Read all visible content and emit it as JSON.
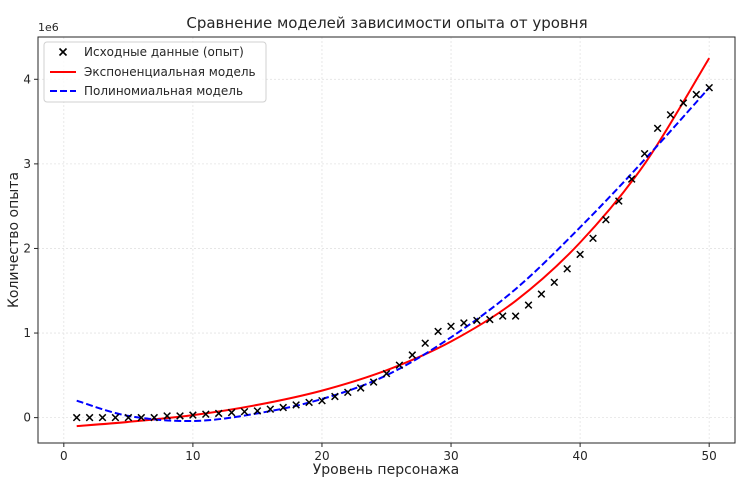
{
  "chart_data": {
    "type": "scatter",
    "title": "Сравнение моделей зависимости опыта от уровня",
    "xlabel": "Уровень персонажа",
    "ylabel": "Количество опыта",
    "y_scale_label": "1e6",
    "xlim": [
      -2,
      52
    ],
    "ylim": [
      -0.3,
      4.5
    ],
    "x_ticks": [
      0,
      10,
      20,
      30,
      40,
      50
    ],
    "x_tick_labels": [
      "0",
      "10",
      "20",
      "30",
      "40",
      "50"
    ],
    "y_ticks": [
      0,
      1,
      2,
      3,
      4
    ],
    "y_tick_labels": [
      "0",
      "1",
      "2",
      "3",
      "4"
    ],
    "grid": true,
    "legend_position": "top-left",
    "series": [
      {
        "name": "Исходные данные (опыт)",
        "kind": "scatter",
        "marker": "x",
        "color": "#000000",
        "x": [
          1,
          2,
          3,
          4,
          5,
          6,
          7,
          8,
          9,
          10,
          11,
          12,
          13,
          14,
          15,
          16,
          17,
          18,
          19,
          20,
          21,
          22,
          23,
          24,
          25,
          26,
          27,
          28,
          29,
          30,
          31,
          32,
          33,
          34,
          35,
          36,
          37,
          38,
          39,
          40,
          41,
          42,
          43,
          44,
          45,
          46,
          47,
          48,
          49,
          50
        ],
        "y": [
          0.0,
          0.0,
          0.0,
          0.0,
          0.0,
          0.0,
          0.0,
          0.02,
          0.02,
          0.03,
          0.04,
          0.05,
          0.06,
          0.07,
          0.08,
          0.1,
          0.12,
          0.15,
          0.18,
          0.2,
          0.25,
          0.3,
          0.35,
          0.42,
          0.52,
          0.62,
          0.74,
          0.88,
          1.02,
          1.08,
          1.12,
          1.15,
          1.16,
          1.2,
          1.2,
          1.33,
          1.46,
          1.6,
          1.76,
          1.93,
          2.12,
          2.34,
          2.56,
          2.82,
          3.12,
          3.42,
          3.58,
          3.72,
          3.82,
          3.9
        ]
      },
      {
        "name": "Экспоненциальная модель",
        "kind": "line",
        "color": "#ff0000",
        "dash": "solid",
        "x": [
          1,
          5,
          10,
          15,
          20,
          25,
          30,
          35,
          40,
          45,
          50
        ],
        "y": [
          -0.1,
          -0.05,
          0.03,
          0.15,
          0.32,
          0.56,
          0.9,
          1.38,
          2.07,
          3.0,
          4.25
        ]
      },
      {
        "name": "Полиномиальная модель",
        "kind": "line",
        "color": "#0000ff",
        "dash": "dashed",
        "x": [
          1,
          5,
          10,
          15,
          20,
          25,
          30,
          35,
          40,
          45,
          50
        ],
        "y": [
          0.2,
          0.02,
          -0.04,
          0.05,
          0.22,
          0.5,
          0.95,
          1.52,
          2.25,
          3.05,
          3.9
        ]
      }
    ]
  }
}
